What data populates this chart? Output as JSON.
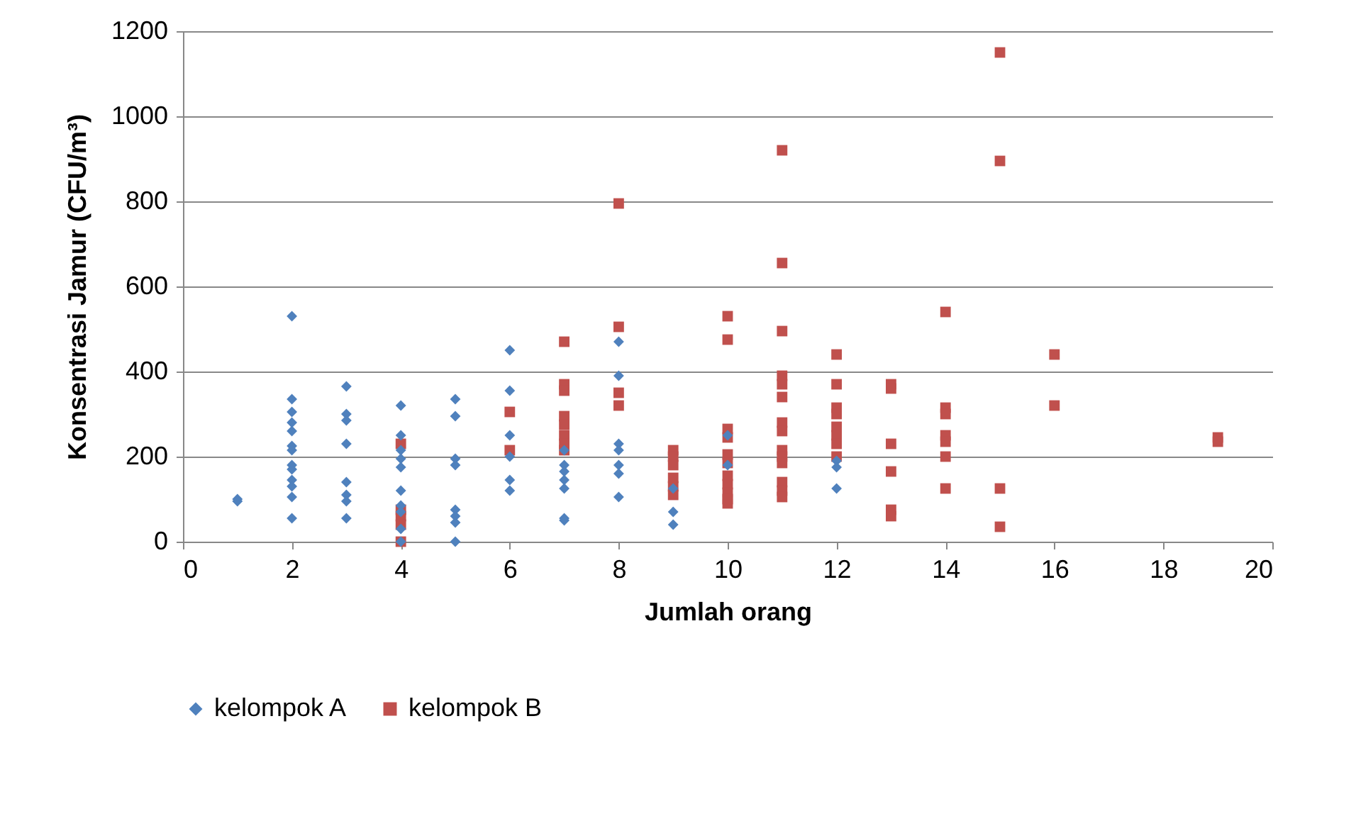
{
  "chart_data": {
    "type": "scatter",
    "xlabel": "Jumlah orang",
    "ylabel": "Konsentrasi Jamur (CFU/m³)",
    "xlim": [
      0,
      20
    ],
    "xticks": [
      0,
      2,
      4,
      6,
      8,
      10,
      12,
      14,
      16,
      18,
      20
    ],
    "ylim": [
      0,
      1200
    ],
    "yticks": [
      0,
      200,
      400,
      600,
      800,
      1000,
      1200
    ],
    "grid": "y",
    "legend": "bottom",
    "series": [
      {
        "name": "kelompok A",
        "color": "#4f81bd",
        "marker": "diamond",
        "x": [
          1,
          1,
          2,
          2,
          2,
          2,
          2,
          2,
          2,
          2,
          2,
          2,
          2,
          2,
          2,
          3,
          3,
          3,
          3,
          3,
          3,
          3,
          3,
          4,
          4,
          4,
          4,
          4,
          4,
          4,
          4,
          4,
          4,
          5,
          5,
          5,
          5,
          5,
          5,
          5,
          5,
          6,
          6,
          6,
          6,
          6,
          6,
          7,
          7,
          7,
          7,
          7,
          7,
          7,
          8,
          8,
          8,
          8,
          8,
          8,
          8,
          9,
          9,
          9,
          10,
          10,
          12,
          12,
          12
        ],
        "values": [
          100,
          95,
          530,
          335,
          305,
          280,
          260,
          225,
          215,
          180,
          170,
          145,
          130,
          105,
          55,
          365,
          300,
          285,
          230,
          140,
          110,
          95,
          55,
          320,
          250,
          215,
          195,
          175,
          120,
          85,
          70,
          30,
          0,
          335,
          295,
          195,
          180,
          75,
          60,
          45,
          0,
          450,
          355,
          250,
          200,
          145,
          120,
          215,
          180,
          165,
          145,
          125,
          55,
          50,
          470,
          390,
          230,
          215,
          180,
          160,
          105,
          125,
          70,
          40,
          250,
          180,
          190,
          175,
          125
        ]
      },
      {
        "name": "kelompok B",
        "color": "#c0504d",
        "marker": "square",
        "x": [
          4,
          4,
          4,
          4,
          4,
          6,
          6,
          7,
          7,
          7,
          7,
          7,
          7,
          7,
          7,
          8,
          8,
          8,
          8,
          9,
          9,
          9,
          9,
          9,
          9,
          10,
          10,
          10,
          10,
          10,
          10,
          10,
          10,
          10,
          10,
          10,
          11,
          11,
          11,
          11,
          11,
          11,
          11,
          11,
          11,
          11,
          11,
          11,
          11,
          11,
          12,
          12,
          12,
          12,
          12,
          12,
          12,
          12,
          13,
          13,
          13,
          13,
          13,
          13,
          14,
          14,
          14,
          14,
          14,
          14,
          14,
          15,
          15,
          15,
          15,
          16,
          16,
          19,
          19
        ],
        "values": [
          230,
          75,
          60,
          40,
          0,
          305,
          215,
          470,
          370,
          355,
          295,
          275,
          250,
          230,
          215,
          795,
          505,
          350,
          320,
          215,
          200,
          180,
          150,
          130,
          110,
          530,
          475,
          265,
          245,
          205,
          185,
          155,
          135,
          115,
          100,
          90,
          920,
          655,
          495,
          390,
          370,
          340,
          280,
          260,
          215,
          200,
          185,
          140,
          120,
          105,
          440,
          370,
          315,
          300,
          270,
          250,
          230,
          200,
          370,
          360,
          230,
          165,
          75,
          60,
          540,
          315,
          300,
          250,
          235,
          200,
          125,
          1150,
          895,
          125,
          35,
          440,
          320,
          245,
          235
        ]
      }
    ]
  }
}
